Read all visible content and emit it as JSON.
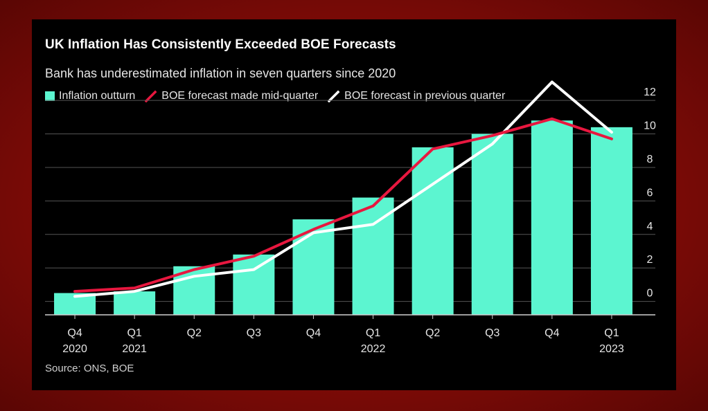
{
  "chart_data": {
    "type": "bar",
    "title": "UK Inflation Has Consistently Exceeded BOE Forecasts",
    "subtitle": "Bank has underestimated inflation in seven quarters since 2020",
    "source": "Source: ONS, BOE",
    "categories": [
      {
        "quarter": "Q4",
        "year": "2020"
      },
      {
        "quarter": "Q1",
        "year": "2021"
      },
      {
        "quarter": "Q2",
        "year": ""
      },
      {
        "quarter": "Q3",
        "year": ""
      },
      {
        "quarter": "Q4",
        "year": ""
      },
      {
        "quarter": "Q1",
        "year": "2022"
      },
      {
        "quarter": "Q2",
        "year": ""
      },
      {
        "quarter": "Q3",
        "year": ""
      },
      {
        "quarter": "Q4",
        "year": ""
      },
      {
        "quarter": "Q1",
        "year": "2023"
      }
    ],
    "series": [
      {
        "name": "Inflation outturn",
        "kind": "bar",
        "color": "#5cf5d0",
        "values": [
          0.5,
          0.6,
          2.1,
          2.8,
          4.9,
          6.2,
          9.2,
          10.0,
          10.8,
          10.4
        ]
      },
      {
        "name": "BOE forecast made mid-quarter",
        "kind": "line",
        "color": "#e8173f",
        "values": [
          0.6,
          0.8,
          1.9,
          2.7,
          4.3,
          5.7,
          9.1,
          9.9,
          10.9,
          9.7
        ]
      },
      {
        "name": "BOE forecast in previous quarter",
        "kind": "line",
        "color": "#ffffff",
        "values": [
          0.3,
          0.6,
          1.5,
          1.9,
          4.1,
          4.6,
          7.0,
          9.4,
          13.1,
          10.1
        ]
      }
    ],
    "yticks": [
      0,
      2,
      4,
      6,
      8,
      10,
      12
    ],
    "ylim": [
      -0.8,
      12.5
    ],
    "grid": true,
    "y_axis_position": "right",
    "legend_position": "top-left"
  }
}
